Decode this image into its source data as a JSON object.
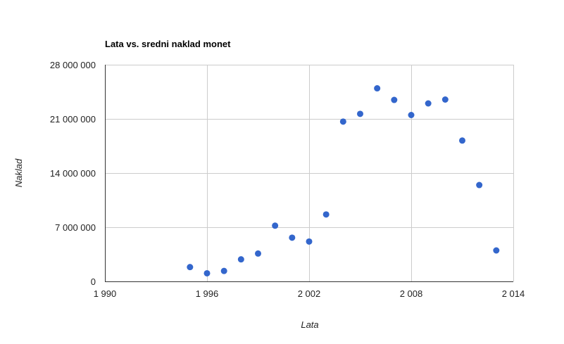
{
  "chart_data": {
    "type": "scatter",
    "title": "Lata vs. sredni naklad monet",
    "xlabel": "Lata",
    "ylabel": "Naklad",
    "xlim": [
      1990,
      2014
    ],
    "ylim": [
      0,
      28000000
    ],
    "xticks": [
      {
        "value": 1990,
        "label": "1 990"
      },
      {
        "value": 1996,
        "label": "1 996"
      },
      {
        "value": 2002,
        "label": "2 002"
      },
      {
        "value": 2008,
        "label": "2 008"
      },
      {
        "value": 2014,
        "label": "2 014"
      }
    ],
    "yticks": [
      {
        "value": 0,
        "label": "0"
      },
      {
        "value": 7000000,
        "label": "7 000 000"
      },
      {
        "value": 14000000,
        "label": "14 000 000"
      },
      {
        "value": 21000000,
        "label": "21 000 000"
      },
      {
        "value": 28000000,
        "label": "28 000 000"
      }
    ],
    "grid": true,
    "legend": "none",
    "point_color": "#3366cc",
    "points": [
      {
        "x": 1995,
        "y": 1850000
      },
      {
        "x": 1996,
        "y": 1050000
      },
      {
        "x": 1997,
        "y": 1350000
      },
      {
        "x": 1998,
        "y": 2850000
      },
      {
        "x": 1999,
        "y": 3600000
      },
      {
        "x": 2000,
        "y": 7200000
      },
      {
        "x": 2001,
        "y": 5650000
      },
      {
        "x": 2002,
        "y": 5150000
      },
      {
        "x": 2003,
        "y": 8650000
      },
      {
        "x": 2004,
        "y": 20650000
      },
      {
        "x": 2005,
        "y": 21650000
      },
      {
        "x": 2006,
        "y": 24950000
      },
      {
        "x": 2007,
        "y": 23450000
      },
      {
        "x": 2008,
        "y": 21500000
      },
      {
        "x": 2009,
        "y": 23000000
      },
      {
        "x": 2010,
        "y": 23500000
      },
      {
        "x": 2011,
        "y": 18200000
      },
      {
        "x": 2012,
        "y": 12450000
      },
      {
        "x": 2013,
        "y": 4000000
      }
    ]
  }
}
